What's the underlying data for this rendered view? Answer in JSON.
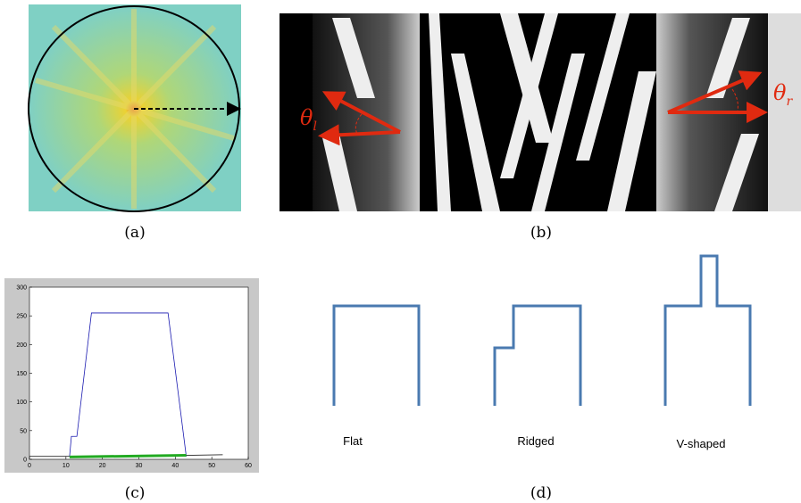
{
  "captions": [
    "(a)",
    "(b)",
    "(c)",
    "(d)"
  ],
  "angles": [
    {
      "symbol": "θ",
      "sub": "l"
    },
    {
      "symbol": "θ",
      "sub": "r"
    }
  ],
  "profile_plot": {
    "type": "line",
    "xlim": [
      0,
      60
    ],
    "ylim": [
      0,
      300
    ],
    "xticks": [
      0,
      10,
      20,
      30,
      40,
      50,
      60
    ],
    "yticks": [
      0,
      50,
      100,
      150,
      200,
      250,
      300
    ],
    "series": [
      {
        "color": "#000000",
        "x": [
          0,
          11,
          43,
          53
        ],
        "values": [
          5,
          5,
          7,
          8
        ]
      },
      {
        "color": "#1a1ab0",
        "x": [
          11,
          11.5,
          13,
          17,
          38,
          43
        ],
        "values": [
          5,
          40,
          40,
          255,
          255,
          5
        ]
      },
      {
        "color": "#22aa22",
        "x": [
          11,
          43
        ],
        "values": [
          4,
          7
        ]
      }
    ]
  },
  "shapes": [
    "Flat",
    "Ridged",
    "V-shaped"
  ]
}
